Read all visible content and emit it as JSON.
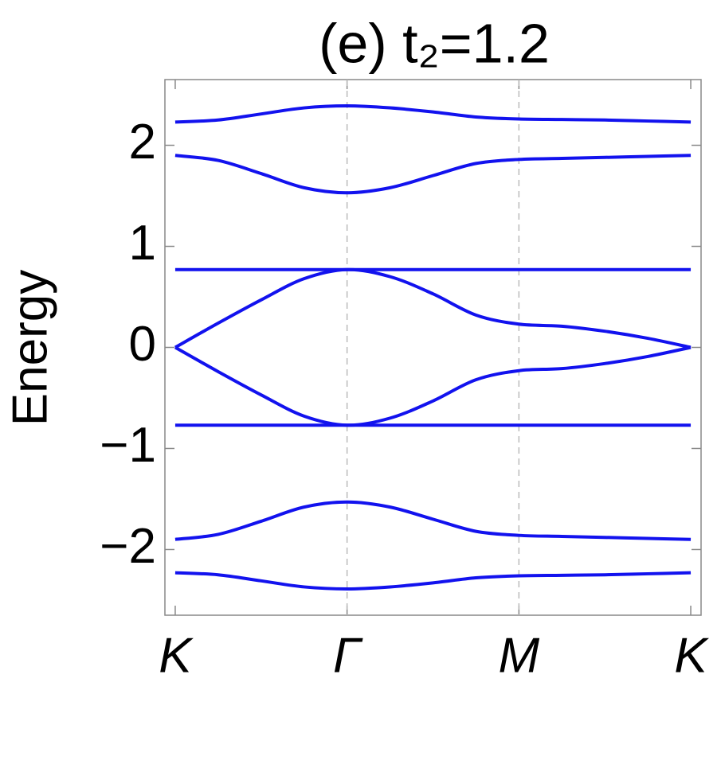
{
  "chart_data": {
    "type": "line",
    "title": "(e) t₂=1.2",
    "y_label": "Energy",
    "x": [
      0,
      0.25,
      0.5,
      0.75,
      1,
      1.25,
      1.5,
      1.75,
      2,
      2.25,
      2.5,
      2.75,
      3
    ],
    "xlim": [
      -0.06,
      3.06
    ],
    "xticks": [
      {
        "value": 0,
        "label": "K"
      },
      {
        "value": 1,
        "label": "Γ"
      },
      {
        "value": 2,
        "label": "M"
      },
      {
        "value": 3,
        "label": "K"
      }
    ],
    "ylim": [
      -2.65,
      2.65
    ],
    "yticks": [
      {
        "value": -2,
        "label": "−2"
      },
      {
        "value": -1,
        "label": "−1"
      },
      0,
      1,
      2
    ],
    "grid": true,
    "series": [
      {
        "color": "#1212ee",
        "values": [
          2.23,
          2.25,
          2.31,
          2.37,
          2.39,
          2.37,
          2.33,
          2.28,
          2.26,
          2.255,
          2.25,
          2.24,
          2.23
        ]
      },
      {
        "color": "#1212ee",
        "values": [
          1.9,
          1.85,
          1.72,
          1.58,
          1.53,
          1.58,
          1.7,
          1.82,
          1.86,
          1.87,
          1.88,
          1.89,
          1.9
        ]
      },
      {
        "color": "#1212ee",
        "values": [
          0.77,
          0.77,
          0.77,
          0.77,
          0.77,
          0.77,
          0.77,
          0.77,
          0.77,
          0.77,
          0.77,
          0.77,
          0.77
        ]
      },
      {
        "color": "#1212ee",
        "values": [
          0,
          0.24,
          0.47,
          0.68,
          0.77,
          0.7,
          0.53,
          0.32,
          0.23,
          0.21,
          0.16,
          0.09,
          0
        ]
      },
      {
        "color": "#1212ee",
        "values": [
          0,
          -0.24,
          -0.47,
          -0.68,
          -0.77,
          -0.7,
          -0.53,
          -0.32,
          -0.23,
          -0.21,
          -0.16,
          -0.09,
          0
        ]
      },
      {
        "color": "#1212ee",
        "values": [
          -0.77,
          -0.77,
          -0.77,
          -0.77,
          -0.77,
          -0.77,
          -0.77,
          -0.77,
          -0.77,
          -0.77,
          -0.77,
          -0.77,
          -0.77
        ]
      },
      {
        "color": "#1212ee",
        "values": [
          -1.9,
          -1.85,
          -1.72,
          -1.58,
          -1.53,
          -1.58,
          -1.7,
          -1.82,
          -1.86,
          -1.87,
          -1.88,
          -1.89,
          -1.9
        ]
      },
      {
        "color": "#1212ee",
        "values": [
          -2.23,
          -2.25,
          -2.31,
          -2.37,
          -2.39,
          -2.37,
          -2.33,
          -2.28,
          -2.26,
          -2.255,
          -2.25,
          -2.24,
          -2.23
        ]
      }
    ]
  }
}
